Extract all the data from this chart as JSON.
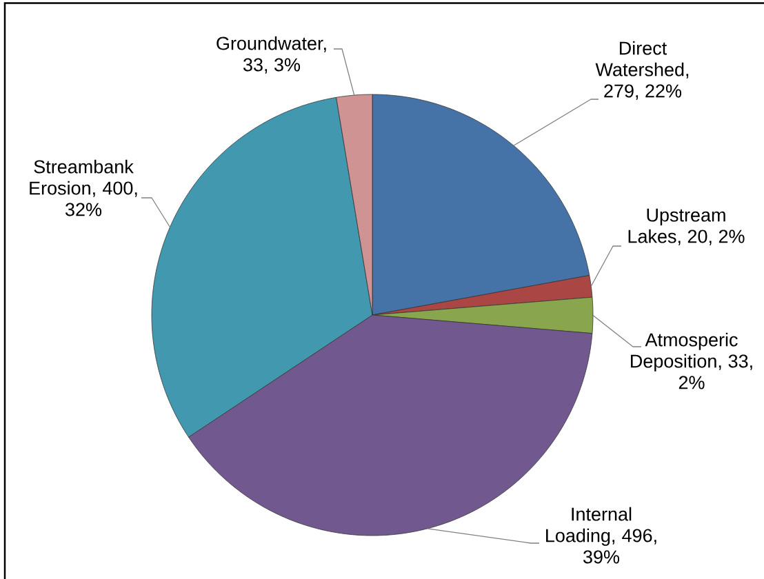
{
  "chart_data": {
    "type": "pie",
    "categories": [
      null,
      null,
      null,
      null,
      null,
      null
    ],
    "values": [
      279,
      20,
      33,
      496,
      400,
      33
    ],
    "colors": [
      "#4572a7",
      "#aa4643",
      "#89a54e",
      "#71588f",
      "#4198af",
      "#d09393"
    ],
    "value_labels": [
      "Direct Watershed, 279, 22%",
      "Upstream Lakes, 20, 2%",
      "Atmosperic Deposition, 33, 2%",
      "Internal Loading, 496, 39%",
      "Streambank Erosion, 400, 32%",
      "Groundwater, 33, 3%"
    ]
  }
}
